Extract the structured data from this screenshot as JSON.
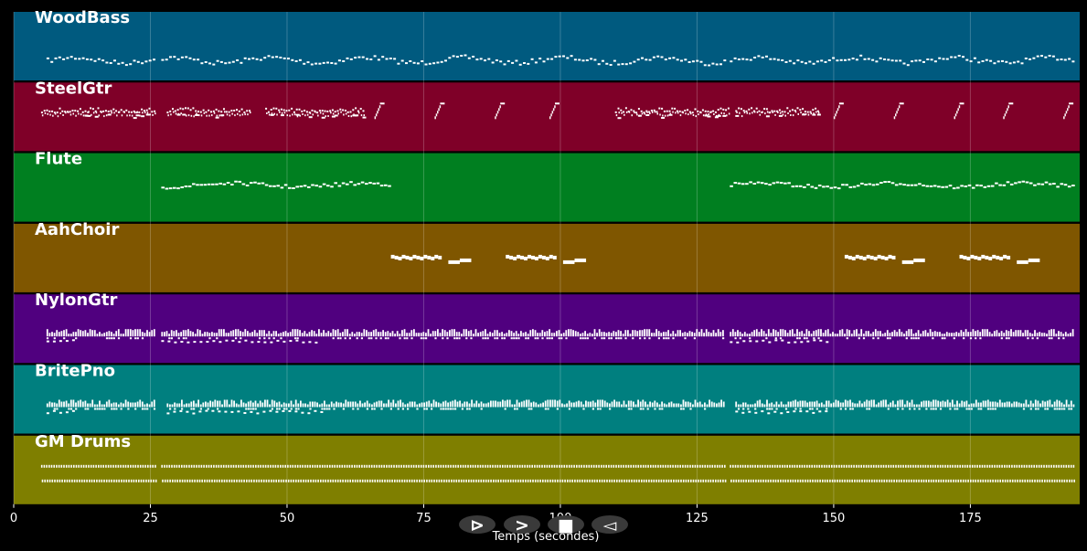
{
  "chart_data": {
    "type": "piano-roll",
    "xlabel": "Temps (secondes)",
    "xlim": [
      0,
      195
    ],
    "xticks": [
      0,
      25,
      50,
      75,
      100,
      125,
      150,
      175
    ],
    "grid": true,
    "tracks": [
      {
        "name": "WoodBass",
        "color": "#005a7f",
        "style": "bass",
        "segments": [
          [
            6,
            26
          ],
          [
            27,
            130
          ],
          [
            131,
            194
          ]
        ]
      },
      {
        "name": "SteelGtr",
        "color": "#7f0028",
        "style": "gtr",
        "segments": [
          [
            5,
            26
          ],
          [
            28,
            43
          ],
          [
            46,
            64
          ],
          [
            66,
            69
          ],
          [
            77,
            79
          ],
          [
            88,
            90
          ],
          [
            98,
            100
          ],
          [
            110,
            131
          ],
          [
            132,
            147
          ],
          [
            150,
            152
          ],
          [
            161,
            163
          ],
          [
            172,
            174
          ],
          [
            181,
            183
          ],
          [
            192,
            194
          ]
        ]
      },
      {
        "name": "Flute",
        "color": "#007f20",
        "style": "flute",
        "segments": [
          [
            27,
            69
          ],
          [
            131,
            194
          ]
        ]
      },
      {
        "name": "AahChoir",
        "color": "#7f5600",
        "style": "choir",
        "segments": [
          [
            69,
            84
          ],
          [
            90,
            105
          ],
          [
            152,
            167
          ],
          [
            173,
            188
          ]
        ]
      },
      {
        "name": "NylonGtr",
        "color": "#50007f",
        "style": "dense",
        "segments": [
          [
            6,
            26
          ],
          [
            27,
            130
          ],
          [
            131,
            194
          ]
        ]
      },
      {
        "name": "BritePno",
        "color": "#007f7f",
        "style": "dense",
        "segments": [
          [
            6,
            26
          ],
          [
            28,
            130
          ],
          [
            132,
            194
          ]
        ]
      },
      {
        "name": "GM Drums",
        "color": "#7f7f00",
        "style": "drums",
        "segments": [
          [
            5,
            26
          ],
          [
            27,
            130
          ],
          [
            131,
            194
          ]
        ]
      }
    ]
  },
  "controls": [
    {
      "name": "play-forward-button",
      "glyph": "⊳"
    },
    {
      "name": "fast-forward-button",
      "glyph": ">"
    },
    {
      "name": "stop-button",
      "glyph": "■"
    },
    {
      "name": "rewind-button",
      "glyph": "◅"
    }
  ]
}
